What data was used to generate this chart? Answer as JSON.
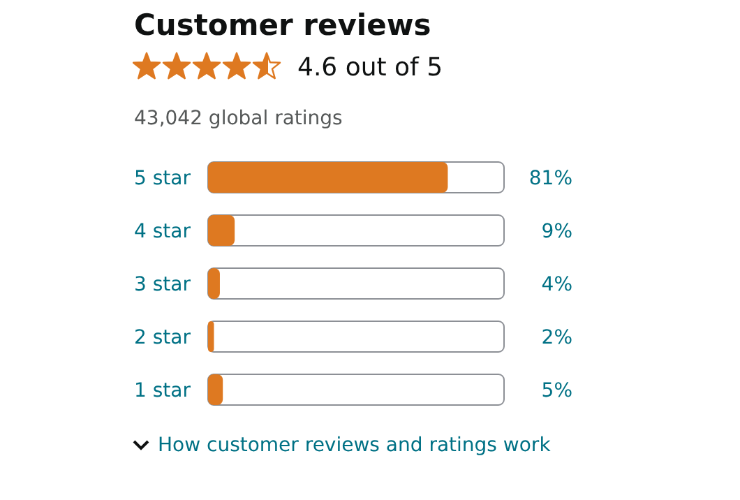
{
  "chart_data": {
    "type": "bar",
    "orientation": "horizontal",
    "title": "Customer reviews",
    "subtitle": "4.6 out of 5",
    "annotations": [
      "43,042 global ratings",
      "How customer reviews and ratings work"
    ],
    "categories": [
      "5 star",
      "4 star",
      "3 star",
      "2 star",
      "1 star"
    ],
    "values": [
      81,
      9,
      4,
      2,
      5
    ],
    "value_labels": [
      "81%",
      "9%",
      "4%",
      "2%",
      "5%"
    ],
    "color": "#de7921",
    "xlim": [
      0,
      100
    ],
    "tick_labels": "y",
    "grid": false,
    "legend": false
  }
}
